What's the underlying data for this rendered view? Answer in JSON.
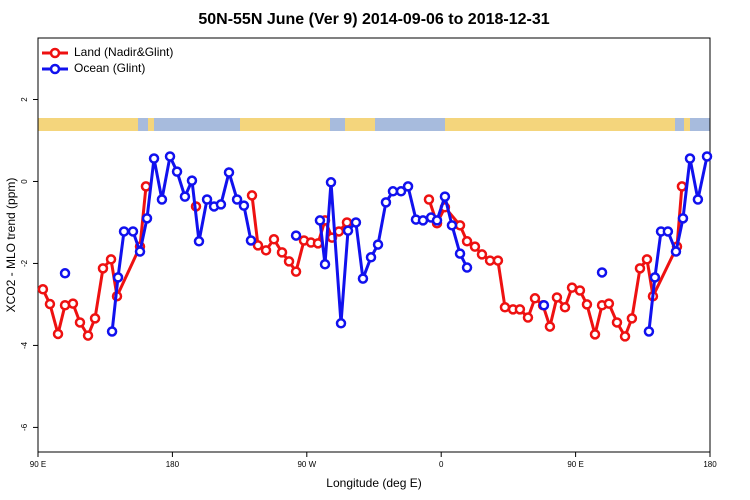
{
  "chart_data": {
    "type": "line",
    "title": "50N-55N June (Ver 9)   2014-09-06 to 2018-12-31",
    "xlabel": "Longitude (deg E)",
    "ylabel": "XCO2 - MLO trend (ppm)",
    "xlim": [
      90,
      540
    ],
    "ylim": [
      -6.6,
      3.5
    ],
    "xticks": [
      {
        "value": 90,
        "label": "90 E"
      },
      180,
      {
        "value": 270,
        "label": "90 W"
      },
      {
        "value": 360,
        "label": "0"
      },
      {
        "value": 450,
        "label": "90 E"
      },
      {
        "value": 540,
        "label": "180"
      }
    ],
    "yticks": [
      -6,
      -4,
      -2,
      0,
      2
    ],
    "legend": "top-left",
    "series": [
      {
        "name": "Land (Nadir&Glint)",
        "color": "#ee1111",
        "x": [
          93.3,
          98.0,
          103.4,
          108.1,
          113.4,
          118.1,
          123.5,
          128.2,
          133.5,
          138.9,
          142.9,
          158.3,
          162.3,
          null,
          195.8,
          null,
          233.3,
          237.3,
          242.7,
          248.0,
          253.4,
          258.1,
          262.8,
          268.1,
          272.8,
          277.5,
          282.2,
          286.9,
          291.5,
          296.9,
          null,
          351.8,
          357.2,
          362.5,
          372.6,
          377.3,
          382.6,
          387.3,
          392.7,
          398.0,
          402.7,
          408.1,
          412.7,
          418.1,
          422.8,
          428.2,
          432.8,
          437.5,
          442.9,
          447.6,
          452.9,
          457.6,
          463.0,
          467.7,
          472.3,
          477.7,
          483.1,
          487.7,
          493.1,
          497.8,
          501.8,
          517.9,
          521.2
        ],
        "values": [
          -2.63,
          -2.99,
          -3.72,
          -3.02,
          -2.98,
          -3.44,
          -3.76,
          -3.34,
          -2.12,
          -1.9,
          -2.8,
          -1.59,
          -0.12,
          null,
          -0.61,
          null,
          -0.34,
          -1.56,
          -1.68,
          -1.41,
          -1.73,
          -1.95,
          -2.2,
          -1.44,
          -1.49,
          -1.51,
          -0.95,
          -1.37,
          -1.22,
          -1.0,
          null,
          -0.44,
          -1.02,
          -0.63,
          -1.07,
          -1.46,
          -1.59,
          -1.78,
          -1.93,
          -1.93,
          -3.07,
          -3.12,
          -3.12,
          -3.32,
          -2.85,
          -3.02,
          -3.54,
          -2.83,
          -3.07,
          -2.59,
          -2.66,
          -3.0,
          -3.73,
          -3.02,
          -2.98,
          -3.44,
          -3.78,
          -3.34,
          -2.12,
          -1.9,
          -2.8,
          -1.59,
          -0.12
        ]
      },
      {
        "name": "Ocean (Glint)",
        "color": "#1111ee",
        "x": [
          108.1,
          null,
          139.6,
          143.6,
          147.6,
          153.6,
          158.3,
          163.0,
          167.7,
          173.0,
          178.4,
          183.1,
          188.4,
          193.1,
          197.8,
          203.2,
          207.9,
          212.5,
          217.9,
          223.3,
          227.9,
          232.6,
          null,
          262.8,
          null,
          278.8,
          282.2,
          286.2,
          292.9,
          297.6,
          302.9,
          307.6,
          313.0,
          317.7,
          323.0,
          327.7,
          333.1,
          337.8,
          343.1,
          347.8,
          353.2,
          357.2,
          362.5,
          367.2,
          372.6,
          377.3,
          null,
          428.8,
          null,
          467.7,
          null,
          499.1,
          503.1,
          507.2,
          511.8,
          517.2,
          521.9,
          526.6,
          531.9,
          538.0
        ],
        "values": [
          -2.24,
          null,
          -3.66,
          -2.34,
          -1.22,
          -1.22,
          -1.71,
          -0.9,
          0.56,
          -0.44,
          0.61,
          0.24,
          -0.37,
          0.02,
          -1.46,
          -0.44,
          -0.61,
          -0.56,
          0.22,
          -0.44,
          -0.59,
          -1.44,
          null,
          -1.32,
          null,
          -0.95,
          -2.02,
          -0.02,
          -3.46,
          -1.2,
          -1.0,
          -2.37,
          -1.85,
          -1.54,
          -0.51,
          -0.24,
          -0.24,
          -0.12,
          -0.93,
          -0.95,
          -0.88,
          -0.95,
          -0.37,
          -1.07,
          -1.76,
          -2.1,
          null,
          -3.02,
          null,
          -2.22,
          null,
          -3.66,
          -2.34,
          -1.22,
          -1.22,
          -1.71,
          -0.9,
          0.56,
          -0.44,
          0.61
        ]
      }
    ]
  }
}
